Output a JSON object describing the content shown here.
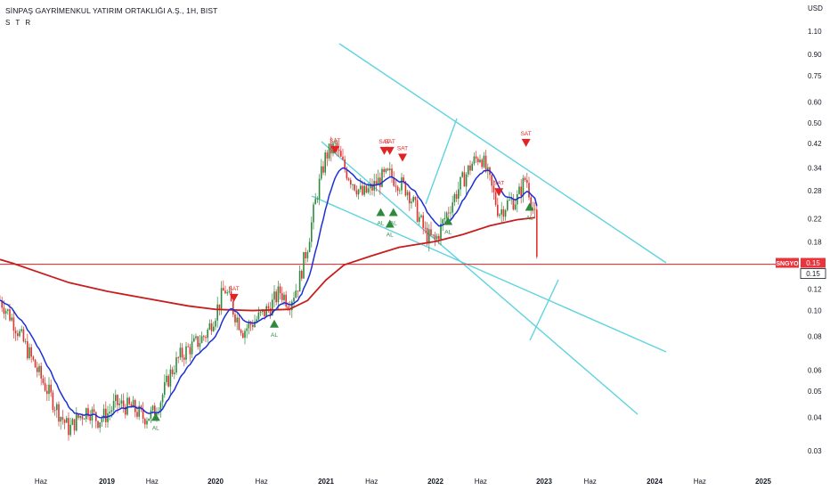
{
  "header": {
    "title": "SİNPAŞ GAYRİMENKUL YATIRIM ORTAKLIĞI A.Ş., 1H, BIST",
    "indicator": "S T R"
  },
  "colors": {
    "background": "#ffffff",
    "bull": "#2e8b3e",
    "bear": "#e0332e",
    "ema_fast": "#1b2fd6",
    "ma_slow": "#c81d1d",
    "channel": "#5fd3e0",
    "price_line": "#e8343a",
    "axis_text": "#131722",
    "buy_marker": "#2e8b3e",
    "sell_marker": "#e02424"
  },
  "chart_data": {
    "type": "candlestick",
    "scale": "log",
    "currency": "USD",
    "y_ticks": [
      "1.10",
      "0.90",
      "0.75",
      "0.60",
      "0.50",
      "0.42",
      "0.34",
      "0.28",
      "0.22",
      "0.18",
      "0.15",
      "0.12",
      "0.10",
      "0.08",
      "0.06",
      "0.05",
      "0.04",
      "0.03"
    ],
    "y_tick_values": [
      1.1,
      0.9,
      0.75,
      0.6,
      0.5,
      0.42,
      0.34,
      0.28,
      0.22,
      0.18,
      0.15,
      0.12,
      0.1,
      0.08,
      0.06,
      0.05,
      0.04,
      0.03
    ],
    "x_ticks": [
      "Haz",
      "2019",
      "Haz",
      "2020",
      "Haz",
      "2021",
      "Haz",
      "2022",
      "Haz",
      "2023",
      "Haz",
      "2024",
      "Haz",
      "2025"
    ],
    "x_tick_dates": [
      "2018-06",
      "2019-01",
      "2019-06",
      "2020-01",
      "2020-06",
      "2021-01",
      "2021-06",
      "2022-01",
      "2022-06",
      "2023-01",
      "2023-06",
      "2024-01",
      "2024-06",
      "2025-01"
    ],
    "price_path": [
      [
        "2017-12",
        0.125
      ],
      [
        "2018-01",
        0.118
      ],
      [
        "2018-02",
        0.105
      ],
      [
        "2018-03",
        0.092
      ],
      [
        "2018-04",
        0.078
      ],
      [
        "2018-05",
        0.066
      ],
      [
        "2018-06",
        0.056
      ],
      [
        "2018-07",
        0.048
      ],
      [
        "2018-08",
        0.041
      ],
      [
        "2018-09",
        0.036
      ],
      [
        "2018-10",
        0.04
      ],
      [
        "2018-11",
        0.043
      ],
      [
        "2018-12",
        0.039
      ],
      [
        "2019-01",
        0.041
      ],
      [
        "2019-02",
        0.045
      ],
      [
        "2019-03",
        0.044
      ],
      [
        "2019-04",
        0.043
      ],
      [
        "2019-05",
        0.04
      ],
      [
        "2019-06",
        0.041
      ],
      [
        "2019-07",
        0.047
      ],
      [
        "2019-08",
        0.058
      ],
      [
        "2019-09",
        0.067
      ],
      [
        "2019-10",
        0.072
      ],
      [
        "2019-11",
        0.076
      ],
      [
        "2019-12",
        0.082
      ],
      [
        "2020-01",
        0.098
      ],
      [
        "2020-02",
        0.121
      ],
      [
        "2020-03",
        0.099
      ],
      [
        "2020-04",
        0.084
      ],
      [
        "2020-05",
        0.09
      ],
      [
        "2020-06",
        0.096
      ],
      [
        "2020-07",
        0.104
      ],
      [
        "2020-08",
        0.118
      ],
      [
        "2020-09",
        0.107
      ],
      [
        "2020-10",
        0.126
      ],
      [
        "2020-11",
        0.175
      ],
      [
        "2020-12",
        0.27
      ],
      [
        "2021-01",
        0.38
      ],
      [
        "2021-02",
        0.41
      ],
      [
        "2021-03",
        0.34
      ],
      [
        "2021-04",
        0.3
      ],
      [
        "2021-05",
        0.27
      ],
      [
        "2021-06",
        0.285
      ],
      [
        "2021-07",
        0.31
      ],
      [
        "2021-08",
        0.32
      ],
      [
        "2021-09",
        0.3
      ],
      [
        "2021-10",
        0.28
      ],
      [
        "2021-11",
        0.23
      ],
      [
        "2021-12",
        0.19
      ],
      [
        "2022-01",
        0.182
      ],
      [
        "2022-02",
        0.22
      ],
      [
        "2022-03",
        0.262
      ],
      [
        "2022-04",
        0.305
      ],
      [
        "2022-05",
        0.352
      ],
      [
        "2022-06",
        0.382
      ],
      [
        "2022-07",
        0.3
      ],
      [
        "2022-08",
        0.232
      ],
      [
        "2022-09",
        0.252
      ],
      [
        "2022-10",
        0.26
      ],
      [
        "2022-11",
        0.315
      ],
      [
        "2022-12",
        0.22
      ],
      [
        "2022-12",
        0.15
      ]
    ],
    "ma_slow_path": [
      [
        "2017-12",
        0.155
      ],
      [
        "2018-03",
        0.15
      ],
      [
        "2018-06",
        0.138
      ],
      [
        "2018-09",
        0.127
      ],
      [
        "2019-01",
        0.118
      ],
      [
        "2019-06",
        0.11
      ],
      [
        "2019-10",
        0.104
      ],
      [
        "2020-01",
        0.101
      ],
      [
        "2020-05",
        0.1
      ],
      [
        "2020-09",
        0.101
      ],
      [
        "2020-11",
        0.109
      ],
      [
        "2021-01",
        0.13
      ],
      [
        "2021-03",
        0.148
      ],
      [
        "2021-06",
        0.16
      ],
      [
        "2021-09",
        0.172
      ],
      [
        "2022-01",
        0.181
      ],
      [
        "2022-04",
        0.192
      ],
      [
        "2022-07",
        0.207
      ],
      [
        "2022-10",
        0.218
      ],
      [
        "2022-12",
        0.222
      ]
    ],
    "signals": [
      {
        "label": "SAT",
        "type": "sell",
        "date": "2017-12",
        "price": 0.152
      },
      {
        "label": "AL",
        "type": "buy",
        "date": "2019-06",
        "price": 0.04
      },
      {
        "label": "SAT",
        "type": "sell",
        "date": "2020-03",
        "price": 0.111
      },
      {
        "label": "AL",
        "type": "buy",
        "date": "2020-07",
        "price": 0.089
      },
      {
        "label": "SAT",
        "type": "sell",
        "date": "2021-02",
        "price": 0.395
      },
      {
        "label": "SAT",
        "type": "sell",
        "date": "2021-07",
        "price": 0.392
      },
      {
        "label": "SAT",
        "type": "sell",
        "date": "2021-08",
        "price": 0.392
      },
      {
        "label": "SAT",
        "type": "sell",
        "date": "2021-09",
        "price": 0.37
      },
      {
        "label": "AL",
        "type": "buy",
        "date": "2021-07",
        "price": 0.232
      },
      {
        "label": "AL",
        "type": "buy",
        "date": "2021-08",
        "price": 0.232
      },
      {
        "label": "AL",
        "type": "buy",
        "date": "2021-08",
        "price": 0.21
      },
      {
        "label": "AL",
        "type": "buy",
        "date": "2022-02",
        "price": 0.215
      },
      {
        "label": "SAT",
        "type": "sell",
        "date": "2022-08",
        "price": 0.275
      },
      {
        "label": "AL",
        "type": "buy",
        "date": "2022-11",
        "price": 0.243
      },
      {
        "label": "SAT",
        "type": "sell",
        "date": "2022-11",
        "price": 0.42
      }
    ],
    "last_price": {
      "symbol": "SNGYO",
      "value": "0.15"
    },
    "ohlc_label": "0.15",
    "grid": false,
    "legend": "none"
  }
}
